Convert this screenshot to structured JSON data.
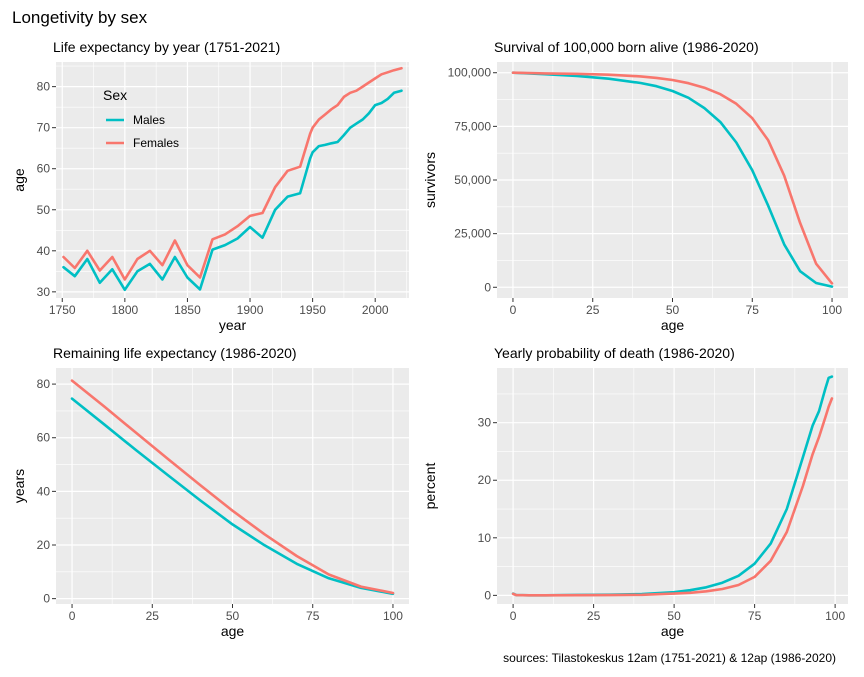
{
  "title": "Longetivity by sex",
  "caption": "sources: Tilastokeskus 12am (1751-2021) & 12ap (1986-2020)",
  "colors": {
    "males": "#00BFC4",
    "females": "#F8766D",
    "panel_bg": "#EBEBEB",
    "grid": "#FFFFFF"
  },
  "legend": {
    "title": "Sex",
    "items": [
      {
        "label": "Males",
        "color": "#00BFC4"
      },
      {
        "label": "Females",
        "color": "#F8766D"
      }
    ]
  },
  "chart_data": [
    {
      "id": "le_year",
      "type": "line",
      "title": "Life expectancy by year (1751-2021)",
      "xlabel": "year",
      "ylabel": "age",
      "xlim": [
        1745,
        2027
      ],
      "ylim": [
        28.5,
        86
      ],
      "xticks": [
        1750,
        1800,
        1850,
        1900,
        1950,
        2000
      ],
      "yticks": [
        30,
        40,
        50,
        60,
        70,
        80
      ],
      "xtick_labels": [
        "1750",
        "1800",
        "1850",
        "1900",
        "1950",
        "2000"
      ],
      "ytick_labels": [
        "30",
        "40",
        "50",
        "60",
        "70",
        "80"
      ],
      "legend": "top-left",
      "series": [
        {
          "name": "Males",
          "color": "#00BFC4",
          "x": [
            1751,
            1760,
            1770,
            1780,
            1790,
            1800,
            1810,
            1820,
            1830,
            1840,
            1850,
            1860,
            1870,
            1880,
            1890,
            1900,
            1910,
            1920,
            1930,
            1940,
            1948,
            1950,
            1955,
            1960,
            1965,
            1970,
            1975,
            1980,
            1985,
            1990,
            1995,
            2000,
            2005,
            2010,
            2015,
            2021
          ],
          "y": [
            36,
            33.8,
            38,
            32.2,
            35.5,
            30.5,
            35,
            36.8,
            33,
            38.5,
            33.5,
            30.6,
            40.3,
            41.4,
            43,
            45.8,
            43.2,
            50,
            53.2,
            54,
            62.5,
            64,
            65.5,
            65.8,
            66.2,
            66.5,
            68.2,
            70,
            71,
            72,
            73.5,
            75.5,
            76,
            77,
            78.5,
            79
          ]
        },
        {
          "name": "Females",
          "color": "#F8766D",
          "x": [
            1751,
            1760,
            1770,
            1780,
            1790,
            1800,
            1810,
            1820,
            1830,
            1840,
            1850,
            1860,
            1870,
            1880,
            1890,
            1900,
            1910,
            1920,
            1930,
            1940,
            1948,
            1950,
            1955,
            1960,
            1965,
            1970,
            1975,
            1980,
            1985,
            1990,
            1995,
            2000,
            2005,
            2010,
            2015,
            2021
          ],
          "y": [
            38.5,
            35.8,
            40,
            35.2,
            38.5,
            33,
            38,
            40,
            36.5,
            42.5,
            36.5,
            33.5,
            42.8,
            44,
            46,
            48.5,
            49.2,
            55.5,
            59.5,
            60.5,
            68.5,
            70,
            72,
            73.2,
            74.5,
            75.5,
            77.5,
            78.5,
            79,
            80,
            81,
            82,
            83,
            83.5,
            84,
            84.5
          ]
        }
      ]
    },
    {
      "id": "survival",
      "type": "line",
      "title": "Survival of 100,000 born alive (1986-2020)",
      "xlabel": "age",
      "ylabel": "survivors",
      "xlim": [
        -5,
        105
      ],
      "ylim": [
        -5000,
        105000
      ],
      "xticks": [
        0,
        25,
        50,
        75,
        100
      ],
      "yticks": [
        0,
        25000,
        50000,
        75000,
        100000
      ],
      "xtick_labels": [
        "0",
        "25",
        "50",
        "75",
        "100"
      ],
      "ytick_labels": [
        "0",
        "25,000",
        "50,000",
        "75,000",
        "100,000"
      ],
      "series": [
        {
          "name": "Males",
          "color": "#00BFC4",
          "x": [
            0,
            10,
            20,
            30,
            40,
            45,
            50,
            55,
            60,
            65,
            70,
            75,
            80,
            85,
            90,
            95,
            100
          ],
          "y": [
            100000,
            99300,
            98500,
            97200,
            95200,
            93700,
            91500,
            88300,
            83500,
            77000,
            67500,
            54500,
            38000,
            20000,
            7500,
            2000,
            300
          ]
        },
        {
          "name": "Females",
          "color": "#F8766D",
          "x": [
            0,
            10,
            20,
            30,
            40,
            45,
            50,
            55,
            60,
            65,
            70,
            75,
            80,
            85,
            90,
            95,
            100
          ],
          "y": [
            100000,
            99700,
            99500,
            99100,
            98300,
            97600,
            96600,
            95100,
            93000,
            90000,
            85500,
            78800,
            68500,
            52000,
            30000,
            11000,
            1800
          ]
        }
      ]
    },
    {
      "id": "remaining",
      "type": "line",
      "title": "Remaining life expectancy (1986-2020)",
      "xlabel": "age",
      "ylabel": "years",
      "xlim": [
        -5,
        105
      ],
      "ylim": [
        -2,
        86
      ],
      "xticks": [
        0,
        25,
        50,
        75,
        100
      ],
      "yticks": [
        0,
        20,
        40,
        60,
        80
      ],
      "xtick_labels": [
        "0",
        "25",
        "50",
        "75",
        "100"
      ],
      "ytick_labels": [
        "0",
        "20",
        "40",
        "60",
        "80"
      ],
      "series": [
        {
          "name": "Males",
          "color": "#00BFC4",
          "x": [
            0,
            10,
            20,
            30,
            40,
            50,
            60,
            70,
            80,
            90,
            100
          ],
          "y": [
            74.6,
            65,
            55.3,
            45.9,
            36.6,
            27.7,
            19.9,
            13,
            7.6,
            4,
            1.8
          ]
        },
        {
          "name": "Females",
          "color": "#F8766D",
          "x": [
            0,
            10,
            20,
            30,
            40,
            50,
            60,
            70,
            80,
            90,
            100
          ],
          "y": [
            81.3,
            71.7,
            61.8,
            52.0,
            42.3,
            32.8,
            24,
            15.9,
            9,
            4.5,
            2.1
          ]
        }
      ]
    },
    {
      "id": "death_prob",
      "type": "line",
      "title": "Yearly probability of death (1986-2020)",
      "xlabel": "age",
      "ylabel": "percent",
      "xlim": [
        -5,
        104
      ],
      "ylim": [
        -1.5,
        39.5
      ],
      "xticks": [
        0,
        25,
        50,
        75,
        100
      ],
      "yticks": [
        0,
        10,
        20,
        30
      ],
      "xtick_labels": [
        "0",
        "25",
        "50",
        "75",
        "100"
      ],
      "ytick_labels": [
        "0",
        "10",
        "20",
        "30"
      ],
      "series": [
        {
          "name": "Males",
          "color": "#00BFC4",
          "x": [
            0,
            1,
            5,
            10,
            20,
            30,
            40,
            50,
            55,
            60,
            65,
            70,
            75,
            80,
            85,
            90,
            93,
            95,
            97,
            98,
            99
          ],
          "y": [
            0.3,
            0.05,
            0.02,
            0.02,
            0.08,
            0.12,
            0.22,
            0.55,
            0.9,
            1.4,
            2.2,
            3.4,
            5.5,
            9,
            15,
            24,
            29.5,
            32,
            36,
            37.8,
            38
          ]
        },
        {
          "name": "Females",
          "color": "#F8766D",
          "x": [
            0,
            1,
            5,
            10,
            20,
            30,
            40,
            50,
            55,
            60,
            65,
            70,
            75,
            80,
            85,
            90,
            93,
            95,
            97,
            98,
            99
          ],
          "y": [
            0.25,
            0.04,
            0.015,
            0.015,
            0.03,
            0.05,
            0.1,
            0.3,
            0.45,
            0.7,
            1.1,
            1.8,
            3.2,
            6,
            11,
            19,
            24.5,
            27.5,
            31,
            32.8,
            34.2
          ]
        }
      ]
    }
  ]
}
